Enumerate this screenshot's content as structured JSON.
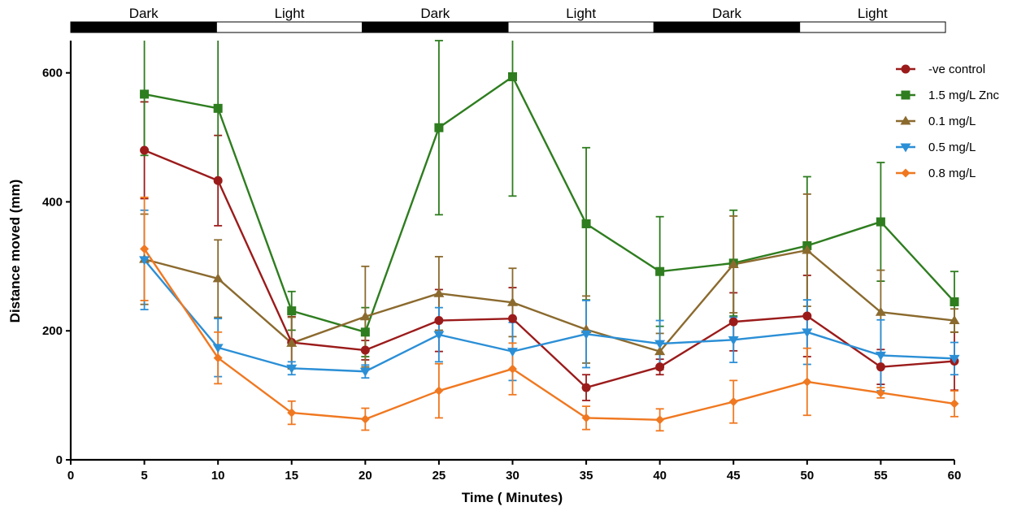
{
  "chart_data": {
    "type": "line",
    "xlabel": "Time ( Minutes)",
    "ylabel": "Distance moved (mm)",
    "xlim": [
      0,
      60
    ],
    "ylim": [
      0,
      650
    ],
    "x_ticks": [
      0,
      5,
      10,
      15,
      20,
      25,
      30,
      35,
      40,
      45,
      50,
      55,
      60
    ],
    "y_ticks": [
      0,
      200,
      400,
      600
    ],
    "grid": false,
    "legend_position": "top-right",
    "phases": [
      {
        "label": "Dark",
        "start": 0,
        "end": 10,
        "color": "#000000"
      },
      {
        "label": "Light",
        "start": 10,
        "end": 20,
        "color": "#ffffff"
      },
      {
        "label": "Dark",
        "start": 20,
        "end": 30,
        "color": "#000000"
      },
      {
        "label": "Light",
        "start": 30,
        "end": 40,
        "color": "#ffffff"
      },
      {
        "label": "Dark",
        "start": 40,
        "end": 50,
        "color": "#000000"
      },
      {
        "label": "Light",
        "start": 50,
        "end": 60,
        "color": "#ffffff"
      }
    ],
    "x": [
      5,
      10,
      15,
      20,
      25,
      30,
      35,
      40,
      45,
      50,
      55,
      60
    ],
    "series": [
      {
        "name": "-ve control",
        "color": "#9b1b1b",
        "marker": "circle",
        "values": [
          480,
          433,
          182,
          170,
          216,
          219,
          112,
          144,
          214,
          223,
          144,
          153
        ],
        "errors": [
          75,
          70,
          40,
          15,
          48,
          48,
          20,
          12,
          45,
          63,
          27,
          45
        ]
      },
      {
        "name": "1.5 mg/L Znc",
        "color": "#2e7d1f",
        "marker": "square",
        "values": [
          567,
          545,
          231,
          198,
          515,
          594,
          366,
          292,
          305,
          332,
          369,
          245
        ],
        "errors": [
          95,
          115,
          30,
          38,
          135,
          185,
          118,
          85,
          82,
          107,
          92,
          47
        ]
      },
      {
        "name": "0.1 mg/L",
        "color": "#8b6a2e",
        "marker": "triangle-up",
        "values": [
          311,
          281,
          181,
          222,
          258,
          244,
          202,
          168,
          303,
          325,
          229,
          216
        ],
        "errors": [
          70,
          60,
          40,
          78,
          57,
          53,
          52,
          28,
          75,
          87,
          65,
          18
        ]
      },
      {
        "name": "0.5 mg/L",
        "color": "#2b8fd6",
        "marker": "triangle-down",
        "values": [
          310,
          174,
          142,
          137,
          194,
          168,
          195,
          180,
          186,
          198,
          162,
          157
        ],
        "errors": [
          77,
          45,
          10,
          10,
          42,
          45,
          52,
          36,
          35,
          50,
          55,
          25
        ]
      },
      {
        "name": "0.8 mg/L",
        "color": "#f07820",
        "marker": "diamond",
        "values": [
          327,
          158,
          73,
          63,
          107,
          141,
          65,
          62,
          90,
          121,
          104,
          87
        ],
        "errors": [
          80,
          40,
          18,
          17,
          42,
          40,
          18,
          17,
          33,
          52,
          8,
          20
        ]
      }
    ]
  }
}
